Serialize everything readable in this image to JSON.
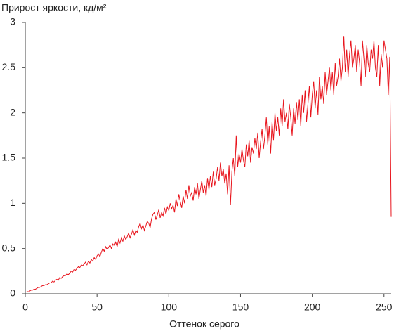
{
  "chart_data": {
    "type": "line",
    "title": "Прирост яркости, кд/м²",
    "x_label": "Оттенок серого",
    "xlim": [
      0,
      255
    ],
    "xticks": [
      0,
      50,
      100,
      150,
      200,
      250
    ],
    "ylim": [
      0,
      3
    ],
    "yticks": [
      0,
      0.5,
      1,
      1.5,
      2,
      2.5,
      3
    ],
    "grid": false,
    "series": [
      {
        "color": "#e8141c",
        "x": [
          1,
          2,
          3,
          4,
          5,
          6,
          7,
          8,
          9,
          10,
          11,
          12,
          13,
          14,
          15,
          16,
          17,
          18,
          19,
          20,
          21,
          22,
          23,
          24,
          25,
          26,
          27,
          28,
          29,
          30,
          31,
          32,
          33,
          34,
          35,
          36,
          37,
          38,
          39,
          40,
          41,
          42,
          43,
          44,
          45,
          46,
          47,
          48,
          49,
          50,
          51,
          52,
          53,
          54,
          55,
          56,
          57,
          58,
          59,
          60,
          61,
          62,
          63,
          64,
          65,
          66,
          67,
          68,
          69,
          70,
          71,
          72,
          73,
          74,
          75,
          76,
          77,
          78,
          79,
          80,
          81,
          82,
          83,
          84,
          85,
          86,
          87,
          88,
          89,
          90,
          91,
          92,
          93,
          94,
          95,
          96,
          97,
          98,
          99,
          100,
          101,
          102,
          103,
          104,
          105,
          106,
          107,
          108,
          109,
          110,
          111,
          112,
          113,
          114,
          115,
          116,
          117,
          118,
          119,
          120,
          121,
          122,
          123,
          124,
          125,
          126,
          127,
          128,
          129,
          130,
          131,
          132,
          133,
          134,
          135,
          136,
          137,
          138,
          139,
          140,
          141,
          142,
          143,
          144,
          145,
          146,
          147,
          148,
          149,
          150,
          151,
          152,
          153,
          154,
          155,
          156,
          157,
          158,
          159,
          160,
          161,
          162,
          163,
          164,
          165,
          166,
          167,
          168,
          169,
          170,
          171,
          172,
          173,
          174,
          175,
          176,
          177,
          178,
          179,
          180,
          181,
          182,
          183,
          184,
          185,
          186,
          187,
          188,
          189,
          190,
          191,
          192,
          193,
          194,
          195,
          196,
          197,
          198,
          199,
          200,
          201,
          202,
          203,
          204,
          205,
          206,
          207,
          208,
          209,
          210,
          211,
          212,
          213,
          214,
          215,
          216,
          217,
          218,
          219,
          220,
          221,
          222,
          223,
          224,
          225,
          226,
          227,
          228,
          229,
          230,
          231,
          232,
          233,
          234,
          235,
          236,
          237,
          238,
          239,
          240,
          241,
          242,
          243,
          244,
          245,
          246,
          247,
          248,
          249,
          250,
          251,
          252,
          253,
          254,
          255
        ],
        "values": [
          0.03,
          0.02,
          0.03,
          0.04,
          0.04,
          0.05,
          0.05,
          0.06,
          0.07,
          0.07,
          0.08,
          0.09,
          0.09,
          0.1,
          0.1,
          0.11,
          0.12,
          0.12,
          0.14,
          0.13,
          0.15,
          0.16,
          0.15,
          0.18,
          0.17,
          0.19,
          0.2,
          0.2,
          0.22,
          0.21,
          0.23,
          0.25,
          0.24,
          0.27,
          0.26,
          0.28,
          0.3,
          0.29,
          0.32,
          0.31,
          0.33,
          0.35,
          0.32,
          0.36,
          0.34,
          0.38,
          0.36,
          0.4,
          0.38,
          0.42,
          0.44,
          0.41,
          0.46,
          0.5,
          0.47,
          0.52,
          0.49,
          0.51,
          0.54,
          0.5,
          0.55,
          0.53,
          0.57,
          0.52,
          0.6,
          0.56,
          0.62,
          0.58,
          0.64,
          0.6,
          0.63,
          0.67,
          0.62,
          0.66,
          0.71,
          0.65,
          0.7,
          0.68,
          0.74,
          0.78,
          0.72,
          0.76,
          0.7,
          0.75,
          0.8,
          0.78,
          0.73,
          0.83,
          0.88,
          0.9,
          0.82,
          0.87,
          0.93,
          0.84,
          0.9,
          0.86,
          0.95,
          0.88,
          0.96,
          0.92,
          1.0,
          0.94,
          0.98,
          0.9,
          1.05,
          0.97,
          1.1,
          1.02,
          0.95,
          1.08,
          1.0,
          1.15,
          1.05,
          1.2,
          1.08,
          1.12,
          1.03,
          1.18,
          1.1,
          1.22,
          1.05,
          1.15,
          1.25,
          1.12,
          1.2,
          1.08,
          1.28,
          1.15,
          1.3,
          1.18,
          1.35,
          1.2,
          1.27,
          1.4,
          1.25,
          1.45,
          1.3,
          1.38,
          1.22,
          1.33,
          1.1,
          1.42,
          0.98,
          1.35,
          1.5,
          1.3,
          1.75,
          1.4,
          1.55,
          1.45,
          1.6,
          1.48,
          1.4,
          1.65,
          1.52,
          1.7,
          1.45,
          1.62,
          1.55,
          1.72,
          1.6,
          1.78,
          1.5,
          1.68,
          1.82,
          1.6,
          1.75,
          1.95,
          1.65,
          1.85,
          1.55,
          1.9,
          1.7,
          2.0,
          1.8,
          1.95,
          1.75,
          2.05,
          1.85,
          2.15,
          1.9,
          2.0,
          1.82,
          2.1,
          1.95,
          1.75,
          2.05,
          1.88,
          2.12,
          1.92,
          2.15,
          1.85,
          2.2,
          2.0,
          2.25,
          1.9,
          2.1,
          2.3,
          1.95,
          2.2,
          2.35,
          2.05,
          2.25,
          1.98,
          2.4,
          2.15,
          2.3,
          2.1,
          2.45,
          2.2,
          2.35,
          2.5,
          2.25,
          2.45,
          2.2,
          2.55,
          2.3,
          2.4,
          2.6,
          2.35,
          2.5,
          2.85,
          2.45,
          2.7,
          2.4,
          2.65,
          2.8,
          2.5,
          2.6,
          2.75,
          2.45,
          2.7,
          2.55,
          2.3,
          2.8,
          2.6,
          2.4,
          2.75,
          2.55,
          2.45,
          2.7,
          2.6,
          2.8,
          2.5,
          2.4,
          2.75,
          2.3,
          2.65,
          2.5,
          2.8,
          2.7,
          2.6,
          2.2,
          2.62,
          0.85
        ]
      }
    ]
  }
}
